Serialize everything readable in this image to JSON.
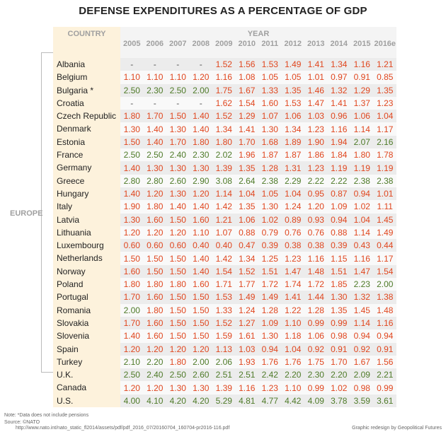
{
  "chart_data": {
    "type": "table",
    "title": "DEFENSE EXPENDITURES AS A PERCENTAGE OF GDP",
    "country_header": "COUNTRY",
    "year_header": "YEAR",
    "group_label": "EUROPE",
    "years": [
      "2005",
      "2006",
      "2007",
      "2008",
      "2009",
      "2010",
      "2011",
      "2012",
      "2013",
      "2014",
      "2015",
      "2016e"
    ],
    "colors": {
      "at_or_above_2": "#4e7a28",
      "below_2": "#e0461e"
    },
    "rows": [
      {
        "country": "Albania",
        "values": [
          "-",
          "-",
          "-",
          "-",
          "1.52",
          "1.56",
          "1.53",
          "1.49",
          "1.41",
          "1.34",
          "1.16",
          "1.21"
        ]
      },
      {
        "country": "Belgium",
        "values": [
          "1.10",
          "1.10",
          "1.10",
          "1.20",
          "1.16",
          "1.08",
          "1.05",
          "1.05",
          "1.01",
          "0.97",
          "0.91",
          "0.85"
        ]
      },
      {
        "country": "Bulgaria *",
        "values": [
          "2.50",
          "2.30",
          "2.50",
          "2.00",
          "1.75",
          "1.67",
          "1.33",
          "1.35",
          "1.46",
          "1.32",
          "1.29",
          "1.35"
        ]
      },
      {
        "country": "Croatia",
        "values": [
          "-",
          "-",
          "-",
          "-",
          "1.62",
          "1.54",
          "1.60",
          "1.53",
          "1.47",
          "1.41",
          "1.37",
          "1.23"
        ]
      },
      {
        "country": "Czech Republic",
        "values": [
          "1.80",
          "1.70",
          "1.50",
          "1.40",
          "1.52",
          "1.29",
          "1.07",
          "1.06",
          "1.03",
          "0.96",
          "1.06",
          "1.04"
        ]
      },
      {
        "country": "Denmark",
        "values": [
          "1.30",
          "1.40",
          "1.30",
          "1.40",
          "1.34",
          "1.41",
          "1.30",
          "1.34",
          "1.23",
          "1.16",
          "1.14",
          "1.17"
        ]
      },
      {
        "country": "Estonia",
        "values": [
          "1.50",
          "1.40",
          "1.70",
          "1.80",
          "1.80",
          "1.70",
          "1.68",
          "1.89",
          "1.90",
          "1.94",
          "2.07",
          "2.16"
        ]
      },
      {
        "country": "France",
        "values": [
          "2.50",
          "2.50",
          "2.40",
          "2.30",
          "2.02",
          "1.96",
          "1.87",
          "1.87",
          "1.86",
          "1.84",
          "1.80",
          "1.78"
        ]
      },
      {
        "country": "Germany",
        "values": [
          "1.40",
          "1.30",
          "1.30",
          "1.30",
          "1.39",
          "1.35",
          "1.28",
          "1.31",
          "1.23",
          "1.19",
          "1.19",
          "1.19"
        ]
      },
      {
        "country": "Greece",
        "values": [
          "2.80",
          "2.80",
          "2.60",
          "2.90",
          "3.08",
          "2.64",
          "2.38",
          "2.29",
          "2.22",
          "2.22",
          "2.38",
          "2.38"
        ]
      },
      {
        "country": "Hungary",
        "values": [
          "1.40",
          "1.20",
          "1.30",
          "1.20",
          "1.14",
          "1.04",
          "1.05",
          "1.04",
          "0.95",
          "0.87",
          "0.94",
          "1.01"
        ]
      },
      {
        "country": "Italy",
        "values": [
          "1.90",
          "1.80",
          "1.40",
          "1.40",
          "1.42",
          "1.35",
          "1.30",
          "1.24",
          "1.20",
          "1.09",
          "1.02",
          "1.11"
        ]
      },
      {
        "country": "Latvia",
        "values": [
          "1.30",
          "1.60",
          "1.50",
          "1.60",
          "1.21",
          "1.06",
          "1.02",
          "0.89",
          "0.93",
          "0.94",
          "1.04",
          "1.45"
        ]
      },
      {
        "country": "Lithuania",
        "values": [
          "1.20",
          "1.20",
          "1.20",
          "1.10",
          "1.07",
          "0.88",
          "0.79",
          "0.76",
          "0.76",
          "0.88",
          "1.14",
          "1.49"
        ]
      },
      {
        "country": "Luxembourg",
        "values": [
          "0.60",
          "0.60",
          "0.60",
          "0.40",
          "0.40",
          "0.47",
          "0.39",
          "0.38",
          "0.38",
          "0.39",
          "0.43",
          "0.44"
        ]
      },
      {
        "country": "Netherlands",
        "values": [
          "1.50",
          "1.50",
          "1.50",
          "1.40",
          "1.42",
          "1.34",
          "1.25",
          "1.23",
          "1.16",
          "1.15",
          "1.16",
          "1.17"
        ]
      },
      {
        "country": "Norway",
        "values": [
          "1.60",
          "1.50",
          "1.50",
          "1.40",
          "1.54",
          "1.52",
          "1.51",
          "1.47",
          "1.48",
          "1.51",
          "1.47",
          "1.54"
        ]
      },
      {
        "country": "Poland",
        "values": [
          "1.80",
          "1.80",
          "1.80",
          "1.60",
          "1.71",
          "1.77",
          "1.72",
          "1.74",
          "1.72",
          "1.85",
          "2.23",
          "2.00"
        ]
      },
      {
        "country": "Portugal",
        "values": [
          "1.70",
          "1.60",
          "1.50",
          "1.50",
          "1.53",
          "1.49",
          "1.49",
          "1.41",
          "1.44",
          "1.30",
          "1.32",
          "1.38"
        ]
      },
      {
        "country": "Romania",
        "values": [
          "2.00",
          "1.80",
          "1.50",
          "1.50",
          "1.33",
          "1.24",
          "1.28",
          "1.22",
          "1.28",
          "1.35",
          "1.45",
          "1.48"
        ]
      },
      {
        "country": "Slovakia",
        "values": [
          "1.70",
          "1.60",
          "1.50",
          "1.50",
          "1.52",
          "1.27",
          "1.09",
          "1.10",
          "0.99",
          "0.99",
          "1.14",
          "1.16"
        ]
      },
      {
        "country": "Slovenia",
        "values": [
          "1.40",
          "1.60",
          "1.50",
          "1.50",
          "1.59",
          "1.61",
          "1.30",
          "1.18",
          "1.06",
          "0.98",
          "0.94",
          "0.94"
        ]
      },
      {
        "country": "Spain",
        "values": [
          "1.20",
          "1.20",
          "1.20",
          "1.20",
          "1.13",
          "1.03",
          "0.94",
          "1.04",
          "0.92",
          "0.91",
          "0.92",
          "0.91"
        ]
      },
      {
        "country": "Turkey",
        "values": [
          "2.10",
          "2.20",
          "1.80",
          "2.00",
          "2.06",
          "1.93",
          "1.76",
          "1.76",
          "1.75",
          "1.70",
          "1.67",
          "1.56"
        ]
      },
      {
        "country": "U.K.",
        "values": [
          "2.50",
          "2.40",
          "2.50",
          "2.60",
          "2.51",
          "2.51",
          "2.42",
          "2.20",
          "2.30",
          "2.20",
          "2.09",
          "2.21"
        ]
      },
      {
        "country": "Canada",
        "values": [
          "1.20",
          "1.20",
          "1.30",
          "1.30",
          "1.39",
          "1.16",
          "1.23",
          "1.10",
          "0.99",
          "1.02",
          "0.98",
          "0.99"
        ]
      },
      {
        "country": "U.S.",
        "values": [
          "4.00",
          "4.10",
          "4.20",
          "4.20",
          "5.29",
          "4.81",
          "4.77",
          "4.42",
          "4.09",
          "3.78",
          "3.59",
          "3.61"
        ]
      }
    ]
  },
  "footer": {
    "note": "Note: *Data does not include pensions",
    "source": "Source: ©NATO",
    "url": "http://www.nato.int/nato_static_fl2014/assets/pdf/pdf_2016_07/20160704_160704-pr2016-116.pdf",
    "credit": "Graphic redesign by Geopolitical Futures"
  }
}
